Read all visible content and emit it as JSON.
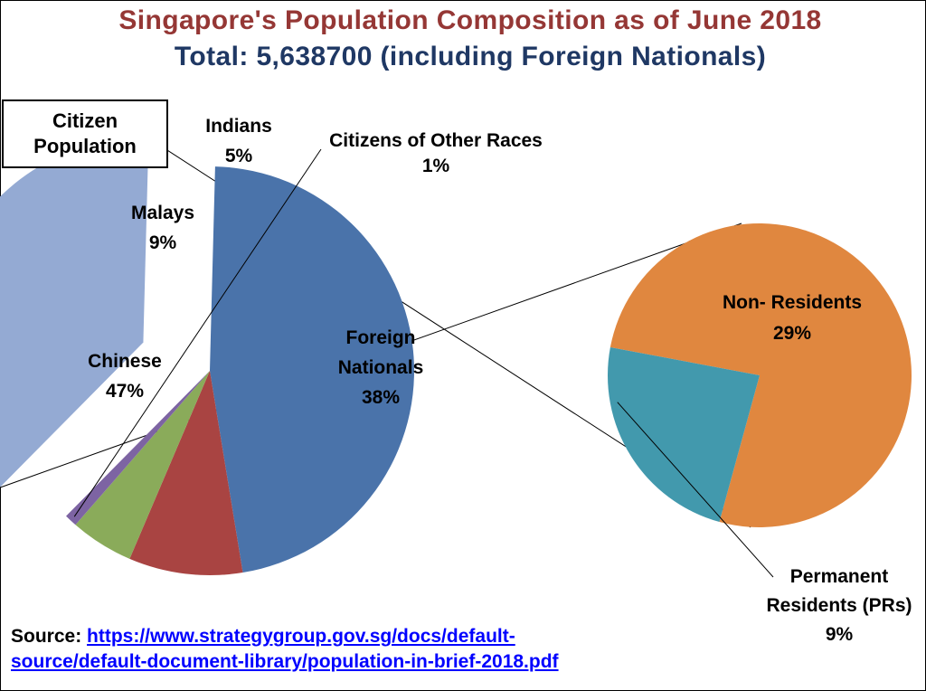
{
  "title": "Singapore's  Population Composition as of June 2018",
  "subtitle": "Total:  5,638700  (including Foreign Nationals)",
  "citizen_box_label": "Citizen\nPopulation",
  "source": {
    "prefix": "Source: ",
    "link_line1": "https://www.strategygroup.gov.sg/docs/default-",
    "link_line2": "source/default-document-library/population-in-brief-2018.pdf"
  },
  "colors": {
    "chinese": "#4a73aa",
    "malays": "#a94442",
    "indians": "#8aab5a",
    "other_races": "#7d64a3",
    "foreign_nationals": "#94aad3",
    "non_residents": "#e0873f",
    "permanent_residents": "#4299ad",
    "title": "#953735",
    "subtitle": "#1f3864",
    "link": "#0000ff"
  },
  "chart_data": [
    {
      "type": "pie",
      "title": "",
      "slices": [
        {
          "label": "Chinese",
          "value": 47,
          "display": "47%"
        },
        {
          "label": "Malays",
          "value": 9,
          "display": "9%"
        },
        {
          "label": "Indians",
          "value": 5,
          "display": "5%"
        },
        {
          "label": "Citizens of Other Races",
          "value": 1,
          "display": "1%"
        },
        {
          "label": "Foreign Nationals",
          "value": 38,
          "display": "38%"
        }
      ]
    },
    {
      "type": "pie",
      "title": "",
      "slices": [
        {
          "label": "Non- Residents",
          "value": 29,
          "display": "29%"
        },
        {
          "label": "Permanent Residents (PRs)",
          "value": 9,
          "display": "9%"
        }
      ]
    }
  ]
}
